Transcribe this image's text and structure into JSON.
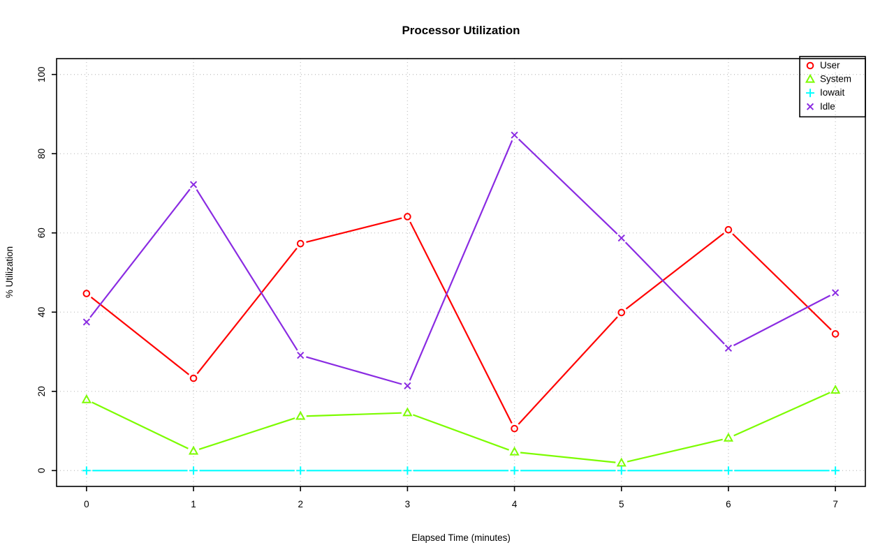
{
  "figure": {
    "title": "Processor Utilization",
    "xlabel": "Elapsed Time (minutes)",
    "ylabel": "% Utilization"
  },
  "chart_data": {
    "type": "line",
    "title": "Processor Utilization",
    "xlabel": "Elapsed Time (minutes)",
    "ylabel": "% Utilization",
    "x": [
      0,
      1,
      2,
      3,
      4,
      5,
      6,
      7
    ],
    "xlim": [
      0,
      7
    ],
    "ylim": [
      0,
      100
    ],
    "x_ticks": [
      "0",
      "1",
      "2",
      "3",
      "4",
      "5",
      "6",
      "7"
    ],
    "y_ticks": [
      "0",
      "20",
      "40",
      "60",
      "80",
      "100"
    ],
    "y_tick_values": [
      0,
      20,
      40,
      60,
      80,
      100
    ],
    "grid": "dotted",
    "grid_color": "#c3c3c3",
    "axis_color": "#000000",
    "legend_position": "top-right",
    "series": [
      {
        "name": "User",
        "color": "#ff0000",
        "marker": "circle",
        "values": [
          44.7,
          23.3,
          57.3,
          64.1,
          10.6,
          39.9,
          60.8,
          34.5
        ]
      },
      {
        "name": "System",
        "color": "#7cfc00",
        "marker": "triangle",
        "values": [
          17.9,
          4.9,
          13.7,
          14.6,
          4.7,
          1.9,
          8.2,
          20.3
        ]
      },
      {
        "name": "Iowait",
        "color": "#00ffff",
        "marker": "plus",
        "values": [
          0,
          0,
          0,
          0,
          0,
          0,
          0,
          0
        ]
      },
      {
        "name": "Idle",
        "color": "#8a2be2",
        "marker": "x",
        "values": [
          37.5,
          72.2,
          29.1,
          21.4,
          84.7,
          58.7,
          30.9,
          44.9
        ]
      }
    ]
  }
}
